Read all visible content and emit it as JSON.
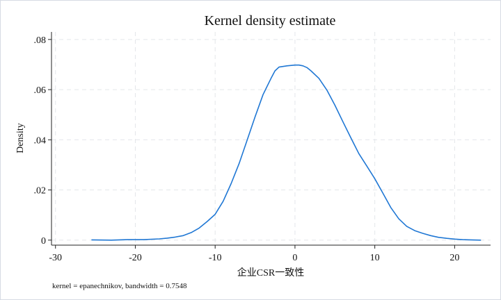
{
  "chart_data": {
    "type": "line",
    "title": "Kernel density estimate",
    "xlabel": "企业CSR一致性",
    "ylabel": "Density",
    "note": "kernel = epanechnikov, bandwidth = 0.7548",
    "xlim": [
      -30.5,
      24.5
    ],
    "ylim": [
      -0.002,
      0.083
    ],
    "xticks": [
      -30,
      -20,
      -10,
      0,
      10,
      20
    ],
    "xtick_labels": [
      "-30",
      "-20",
      "-10",
      "0",
      "10",
      "20"
    ],
    "yticks": [
      0,
      0.02,
      0.04,
      0.06,
      0.08
    ],
    "ytick_labels": [
      "0",
      ".02",
      ".04",
      ".06",
      ".08"
    ],
    "grid": true,
    "line_color": "#1f77d4",
    "series": [
      {
        "name": "",
        "x": [
          -25.5,
          -23,
          -21,
          -19,
          -17,
          -16,
          -15,
          -14,
          -13,
          -12,
          -11,
          -10,
          -9,
          -8,
          -7,
          -6,
          -5,
          -4,
          -3,
          -2.5,
          -2,
          -1,
          0,
          0.5,
          1,
          1.5,
          2,
          3,
          4,
          5,
          6,
          7,
          8,
          9,
          10,
          11,
          12,
          13,
          14,
          15,
          16,
          17,
          18,
          19,
          20,
          21,
          22,
          23.3
        ],
        "y": [
          0.0001,
          0.0,
          0.0002,
          0.0002,
          0.0005,
          0.0008,
          0.0012,
          0.0018,
          0.003,
          0.0048,
          0.0074,
          0.0103,
          0.0155,
          0.0225,
          0.0305,
          0.0398,
          0.0492,
          0.058,
          0.0645,
          0.0675,
          0.069,
          0.0695,
          0.0698,
          0.0698,
          0.0695,
          0.0688,
          0.0675,
          0.0645,
          0.0598,
          0.0538,
          0.0472,
          0.0408,
          0.0345,
          0.0295,
          0.0245,
          0.0188,
          0.013,
          0.0085,
          0.0055,
          0.0038,
          0.0027,
          0.0018,
          0.0011,
          0.0007,
          0.0004,
          0.0002,
          0.0001,
          0.0
        ]
      }
    ]
  }
}
